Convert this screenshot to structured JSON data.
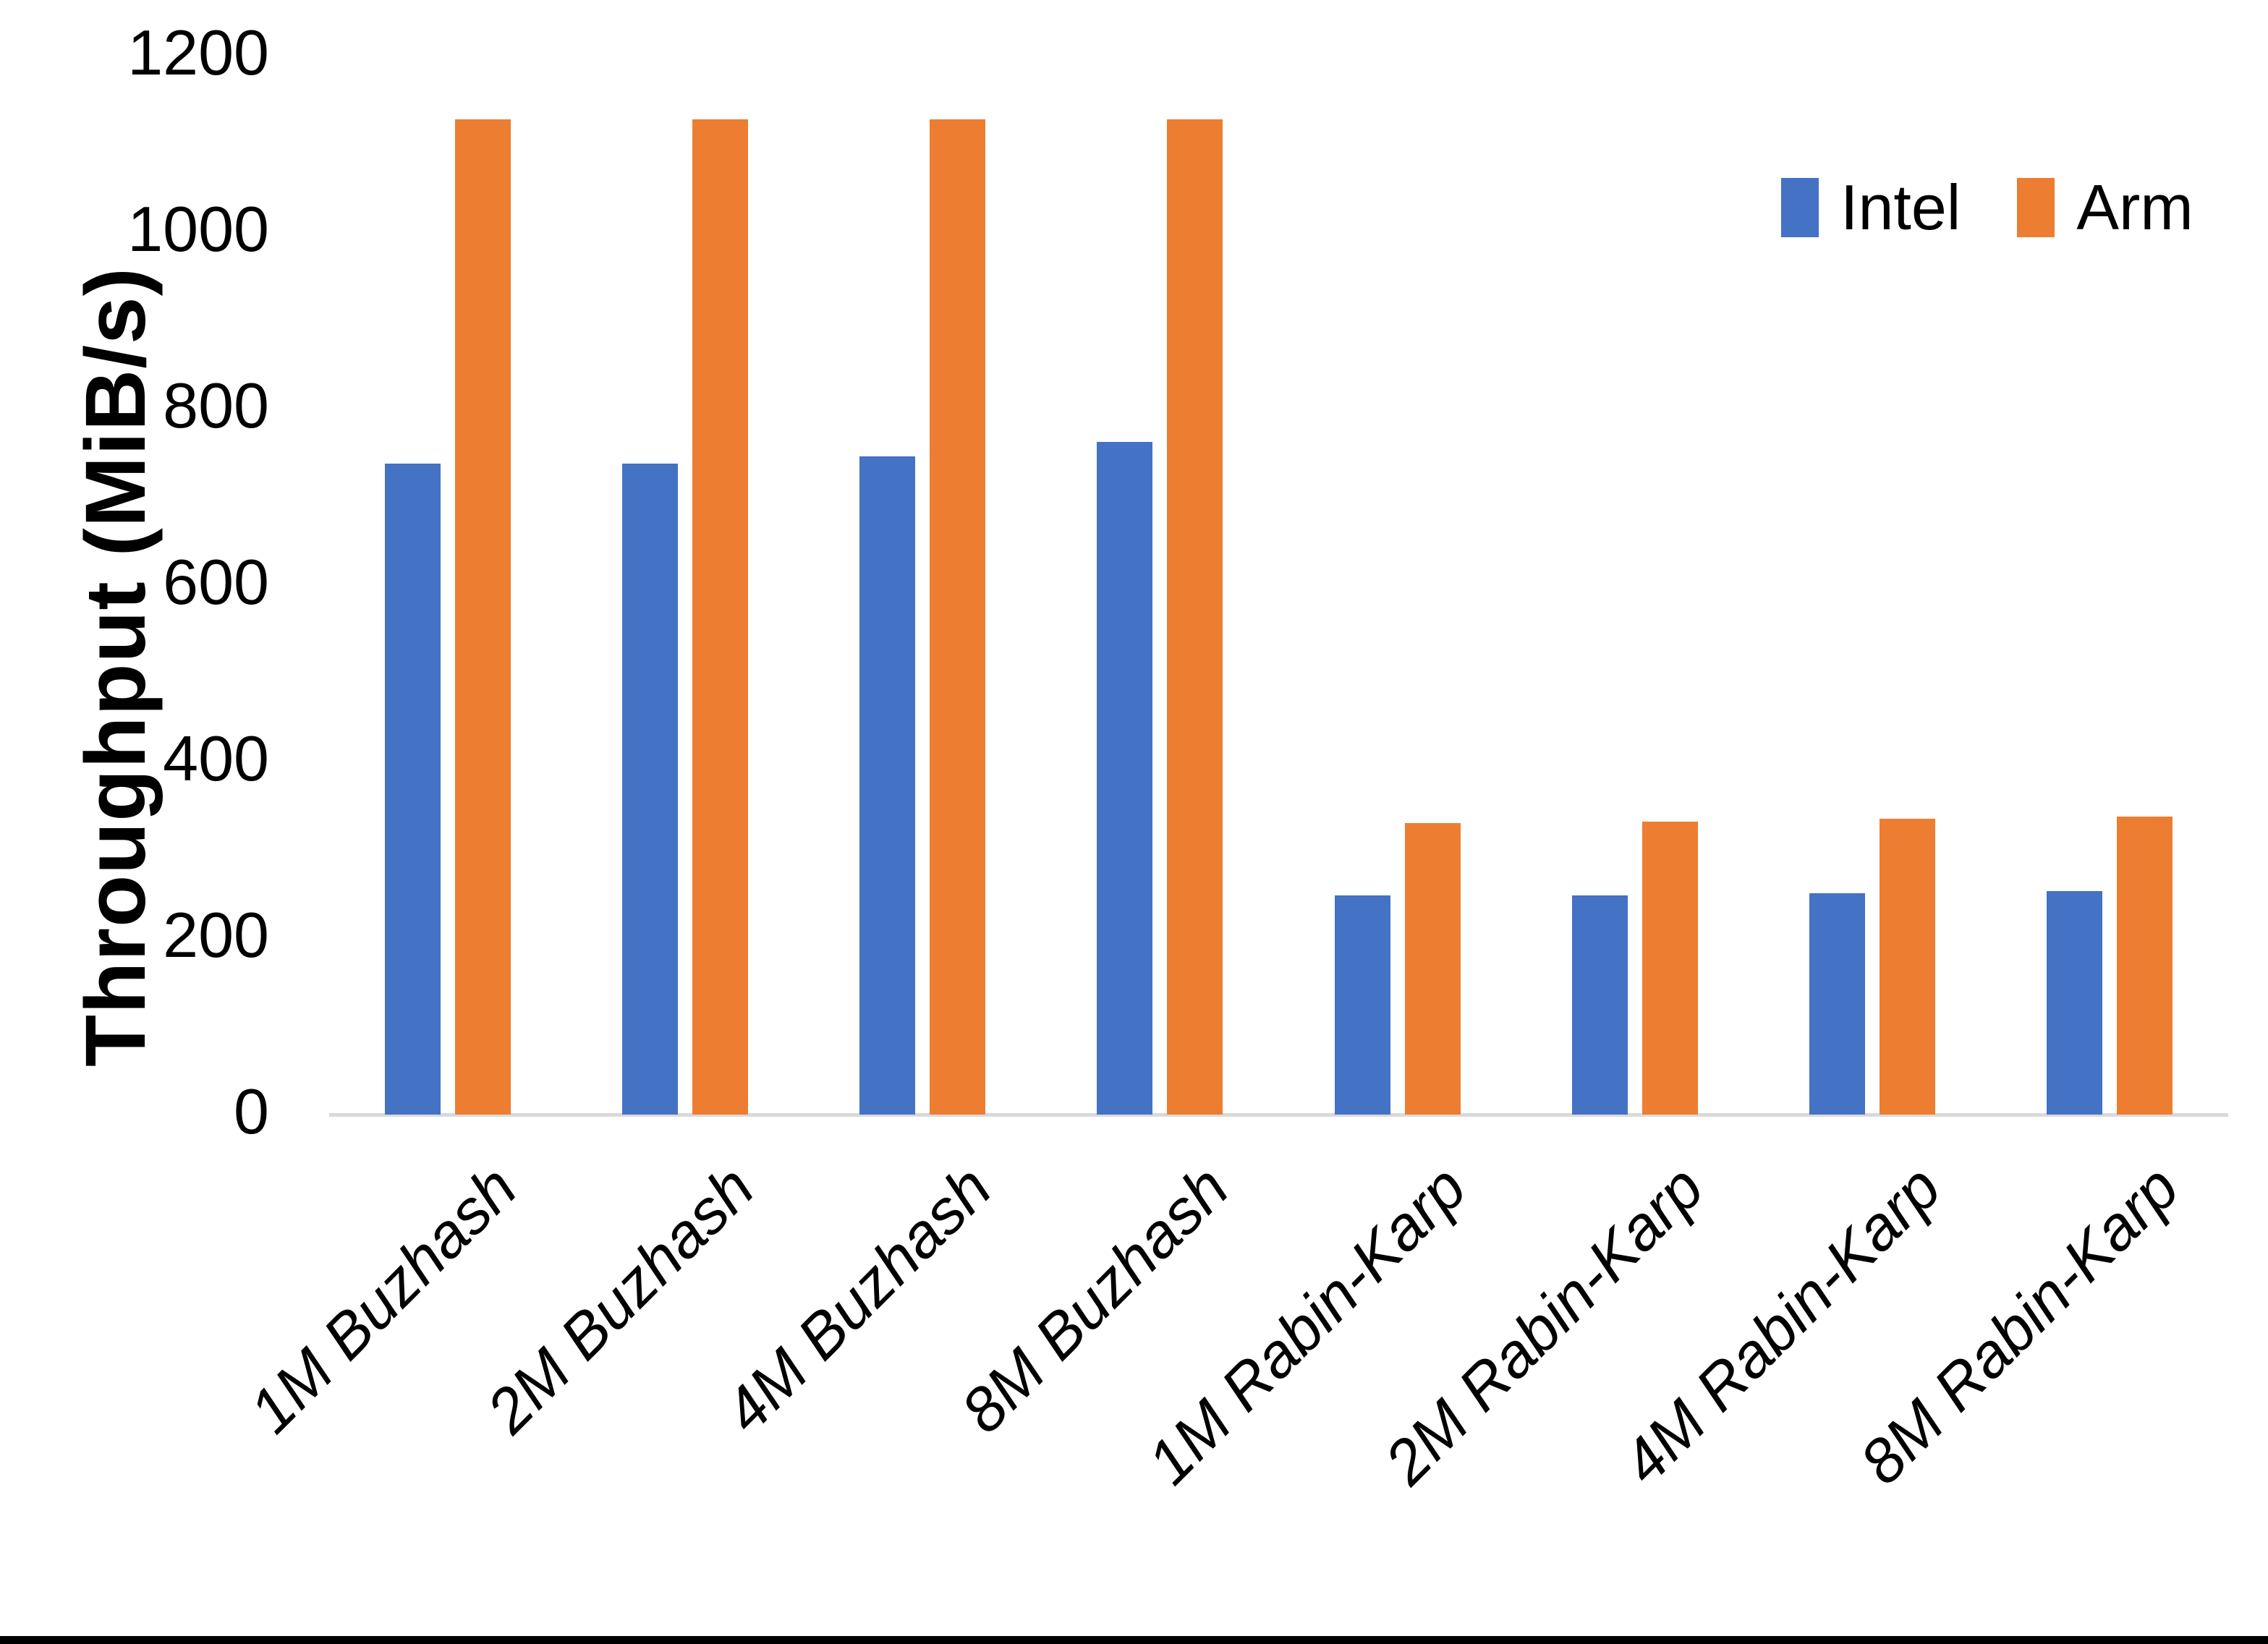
{
  "page": {
    "background": "#FFFFFF",
    "bottom_border_color": "#000000"
  },
  "chart_data": {
    "type": "bar",
    "title": "",
    "xlabel": "",
    "ylabel": "Throughput (MiB/s)",
    "ylim": [
      0,
      1200
    ],
    "yticks": [
      0,
      200,
      400,
      600,
      800,
      1000,
      1200
    ],
    "grid": false,
    "axis_line_color": "#D9D9D9",
    "legend_position": "top-right",
    "categories": [
      "1M Buzhash",
      "2M Buzhash",
      "4M Buzhash",
      "8M Buzhash",
      "1M Rabin-Karp",
      "2M Rabin-Karp",
      "4M Rabin-Karp",
      "8M Rabin-Karp"
    ],
    "series": [
      {
        "name": "Intel",
        "color": "#4472C4",
        "values": [
          738,
          738,
          746,
          762,
          248,
          248,
          251,
          253
        ]
      },
      {
        "name": "Arm",
        "color": "#ED7D31",
        "values": [
          1128,
          1128,
          1128,
          1128,
          330,
          332,
          335,
          338
        ]
      }
    ]
  }
}
